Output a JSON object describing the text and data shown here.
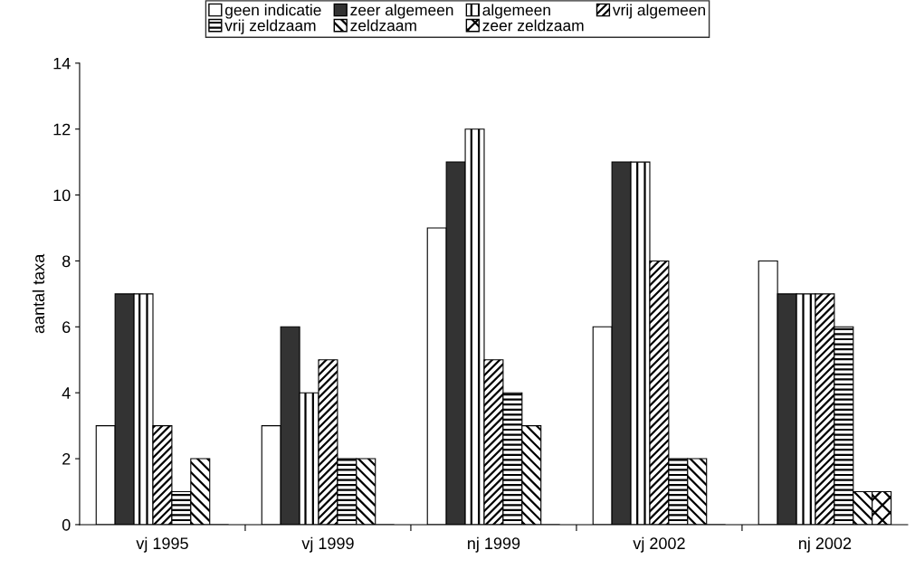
{
  "chart_data": {
    "type": "bar",
    "ylabel": "aantal taxa",
    "categories": [
      "vj 1995",
      "vj 1999",
      "nj 1999",
      "vj 2002",
      "nj 2002"
    ],
    "series": [
      {
        "name": "geen indicatie",
        "color": "#ffffff",
        "values": [
          3,
          3,
          9,
          6,
          8
        ]
      },
      {
        "name": "zeer algemeen",
        "color": "#333333",
        "values": [
          7,
          6,
          11,
          11,
          7
        ]
      },
      {
        "name": "algemeen",
        "color": "#000000",
        "values": [
          7,
          4,
          12,
          11,
          7
        ]
      },
      {
        "name": "vrij algemeen",
        "color": "#000000",
        "values": [
          3,
          5,
          5,
          8,
          7
        ]
      },
      {
        "name": "vrij zeldzaam",
        "color": "#000000",
        "values": [
          1,
          2,
          4,
          2,
          6
        ]
      },
      {
        "name": "zeldzaam",
        "color": "#000000",
        "values": [
          2,
          2,
          3,
          2,
          1
        ]
      },
      {
        "name": "zeer zeldzaam",
        "color": "#000000",
        "values": [
          0,
          0,
          0,
          0,
          1
        ]
      }
    ],
    "ylim": [
      0,
      14
    ],
    "yticks": [
      0,
      2,
      4,
      6,
      8,
      10,
      12,
      14
    ],
    "grid": false,
    "legend": "top"
  }
}
